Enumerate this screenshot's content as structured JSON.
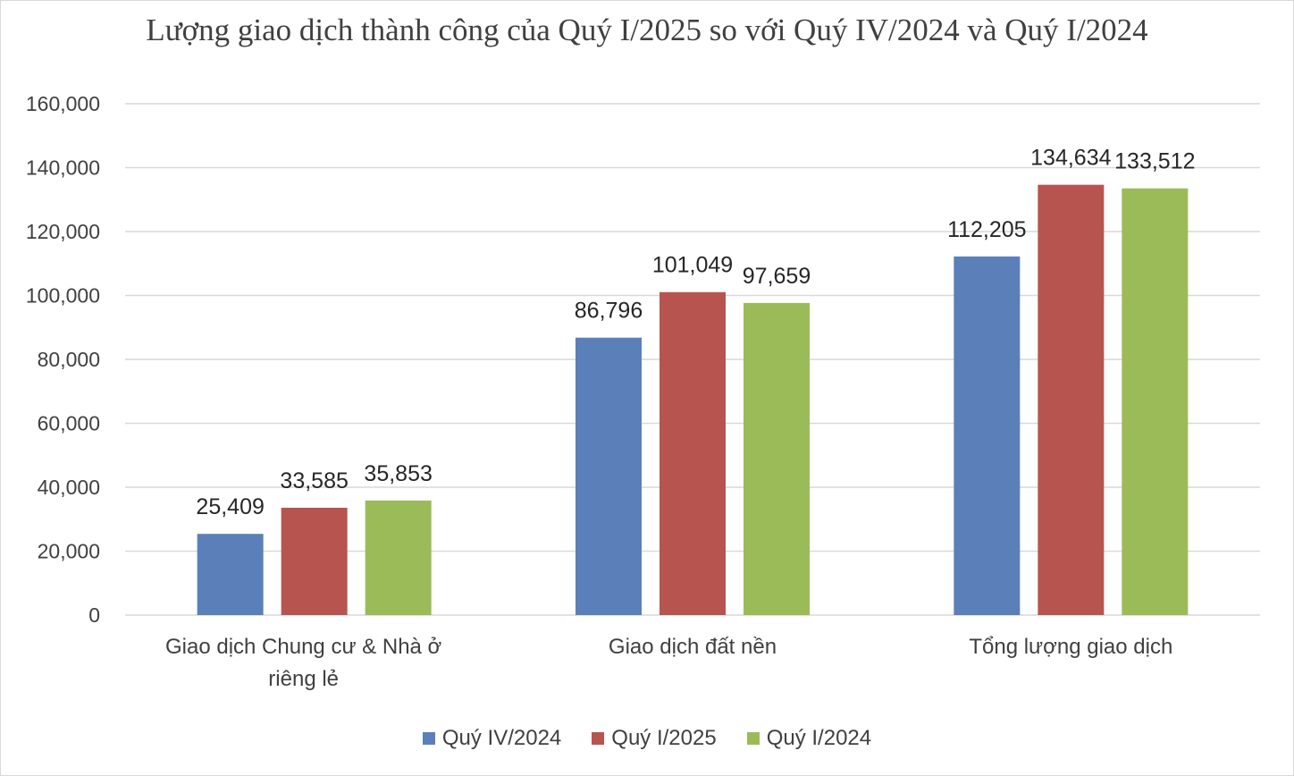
{
  "chart_data": {
    "type": "bar",
    "title": "Lượng giao dịch thành công của Quý I/2025 so với Quý IV/2024 và Quý I/2024",
    "categories": [
      "Giao dịch Chung cư & Nhà ở riêng lẻ",
      "Giao dịch đất nền",
      "Tổng lượng giao dịch"
    ],
    "category_lines": [
      [
        "Giao dịch Chung cư & Nhà ở",
        "riêng lẻ"
      ],
      [
        "Giao dịch đất nền"
      ],
      [
        "Tổng lượng giao dịch"
      ]
    ],
    "series": [
      {
        "name": "Quý IV/2024",
        "color": "#5b80b9",
        "values": [
          25409,
          86796,
          112205
        ],
        "labels": [
          "25,409",
          "86,796",
          "112,205"
        ]
      },
      {
        "name": "Quý I/2025",
        "color": "#b85450",
        "values": [
          33585,
          101049,
          134634
        ],
        "labels": [
          "33,585",
          "101,049",
          "134,634"
        ]
      },
      {
        "name": "Quý I/2024",
        "color": "#9bbb59",
        "values": [
          35853,
          97659,
          133512
        ],
        "labels": [
          "35,853",
          "97,659",
          "133,512"
        ]
      }
    ],
    "ylim": [
      0,
      160000
    ],
    "yticks": [
      0,
      20000,
      40000,
      60000,
      80000,
      100000,
      120000,
      140000,
      160000
    ],
    "ytick_labels": [
      "0",
      "20,000",
      "40,000",
      "60,000",
      "80,000",
      "100,000",
      "120,000",
      "140,000",
      "160,000"
    ],
    "xlabel": "",
    "ylabel": "",
    "grid": true,
    "legend_position": "bottom"
  }
}
